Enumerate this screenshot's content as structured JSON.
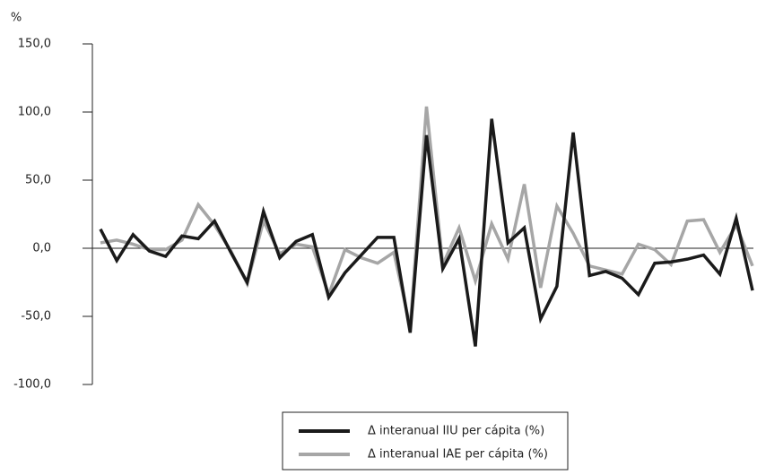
{
  "chart_data": {
    "type": "line",
    "y_label": "%",
    "categories": [
      null,
      null,
      null,
      null,
      null,
      null,
      null,
      null,
      null,
      null,
      null,
      null,
      null,
      null,
      null,
      null,
      null,
      null,
      null,
      null,
      null,
      null,
      null,
      null,
      null,
      null,
      null,
      null,
      null,
      null,
      null,
      null,
      null,
      null,
      null,
      null,
      null,
      null,
      null,
      null,
      null
    ],
    "series": [
      {
        "name": "Δ interanual IIU per cápita (%)",
        "color": "#1a1a1a",
        "values": [
          14,
          -9,
          10,
          -2,
          -6,
          9,
          7,
          20,
          -3,
          -25,
          27,
          -7,
          5,
          10,
          -36,
          -18,
          -5,
          8,
          8,
          -62,
          83,
          -15,
          7,
          -72,
          95,
          4,
          15,
          -52,
          -28,
          85,
          -20,
          -17,
          -22,
          -34,
          -11,
          -10,
          -8,
          -5,
          -19,
          22,
          -31
        ]
      },
      {
        "name": "Δ interanual IAE per cápita (%)",
        "color": "#a6a6a6",
        "values": [
          4,
          6,
          3,
          -1,
          -1,
          6,
          32,
          17,
          -2,
          -26,
          20,
          -4,
          3,
          1,
          -34,
          -1,
          -7,
          -11,
          -3,
          -58,
          104,
          -12,
          15,
          -24,
          18,
          -8,
          47,
          -29,
          31,
          11,
          -13,
          -16,
          -19,
          3,
          -1,
          -12,
          20,
          21,
          -3,
          17,
          -13
        ]
      }
    ],
    "ylim": [
      -100,
      150
    ],
    "yticks": [
      {
        "value": -100,
        "label": "-100,0"
      },
      {
        "value": -50,
        "label": "-50,0"
      },
      {
        "value": 0,
        "label": "0,0"
      },
      {
        "value": 50,
        "label": "50,0"
      },
      {
        "value": 100,
        "label": "100,0"
      },
      {
        "value": 150,
        "label": "150,0"
      }
    ],
    "legend": "bottom"
  }
}
